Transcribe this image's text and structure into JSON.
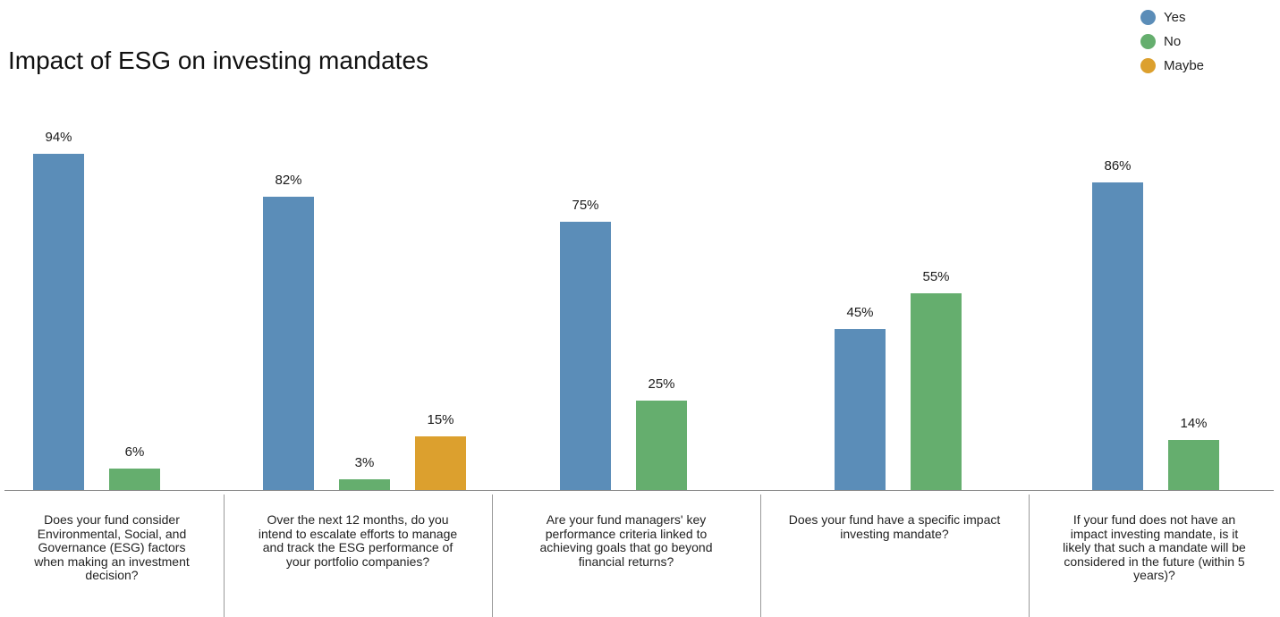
{
  "chart_data": {
    "type": "bar",
    "title": "Impact of ESG on investing mandates",
    "legend_position": "top-right",
    "series": [
      {
        "name": "Yes",
        "color": "#5b8db8"
      },
      {
        "name": "No",
        "color": "#65ae6e"
      },
      {
        "name": "Maybe",
        "color": "#dca02e"
      }
    ],
    "groups": [
      {
        "question": "Does your fund consider Environmental, Social, and Governance (ESG) factors when making an investment decision?",
        "bars": [
          {
            "series": "Yes",
            "value": 94,
            "label": "94%"
          },
          {
            "series": "No",
            "value": 6,
            "label": "6%"
          }
        ]
      },
      {
        "question": "Over the next 12 months, do you intend to escalate efforts to manage and track the ESG performance of your portfolio companies?",
        "bars": [
          {
            "series": "Yes",
            "value": 82,
            "label": "82%"
          },
          {
            "series": "No",
            "value": 3,
            "label": "3%"
          },
          {
            "series": "Maybe",
            "value": 15,
            "label": "15%"
          }
        ]
      },
      {
        "question": "Are your fund managers' key performance criteria linked to achieving goals that go beyond financial returns?",
        "bars": [
          {
            "series": "Yes",
            "value": 75,
            "label": "75%"
          },
          {
            "series": "No",
            "value": 25,
            "label": "25%"
          }
        ]
      },
      {
        "question": "Does your fund have a specific impact investing mandate?",
        "bars": [
          {
            "series": "Yes",
            "value": 45,
            "label": "45%"
          },
          {
            "series": "No",
            "value": 55,
            "label": "55%"
          }
        ]
      },
      {
        "question": "If your fund does not have an impact investing mandate, is it likely that such a mandate will be considered in the future (within 5 years)?",
        "bars": [
          {
            "series": "Yes",
            "value": 86,
            "label": "86%"
          },
          {
            "series": "No",
            "value": 14,
            "label": "14%"
          }
        ]
      }
    ]
  }
}
